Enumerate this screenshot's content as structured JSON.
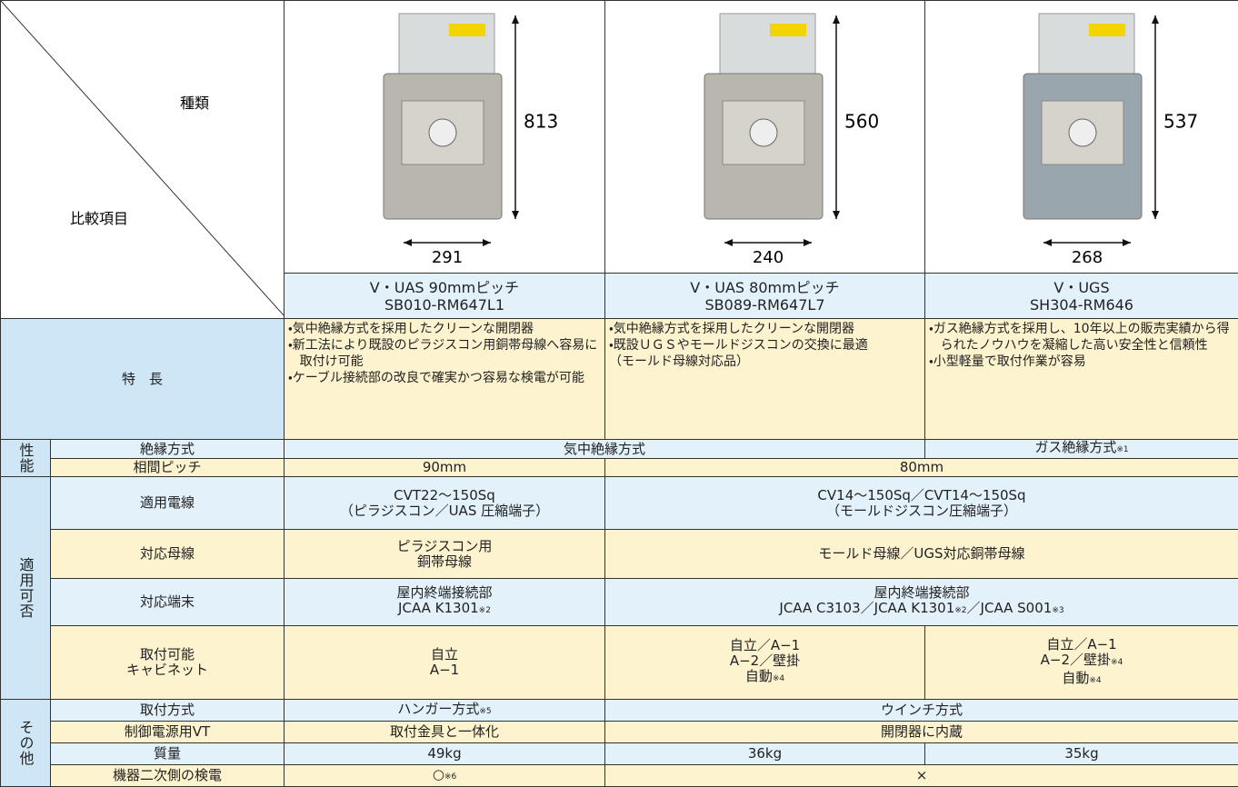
{
  "header": {
    "diagonal_top": "種類",
    "diagonal_bottom": "比較項目"
  },
  "products": [
    {
      "height": 813,
      "width": 291,
      "name": "V・UAS 90mmピッチ",
      "code": "SB010-RM647L1"
    },
    {
      "height": 560,
      "width": 240,
      "name": "V・UAS 80mmピッチ",
      "code": "SB089-RM647L7"
    },
    {
      "height": 537,
      "width": 268,
      "name": "V・UGS",
      "code": "SH304-RM646"
    }
  ],
  "features": {
    "label": "特　長",
    "cells": [
      [
        "・気中絶縁方式を採用したクリーンな開閉器",
        "・新工法により既設のピラジスコン用銅帯母線へ容易に取付け可能",
        "・ケーブル接続部の改良で確実かつ容易な検電が可能"
      ],
      [
        "・気中絶縁方式を採用したクリーンな開閉器",
        "・既設ＵＧＳやモールドジスコンの交換に最適",
        "（モールド母線対応品）"
      ],
      [
        "・ガス絶縁方式を採用し、10年以上の販売実績から得られたノウハウを凝縮した高い安全性と信頼性",
        "・小型軽量で取付作業が容易"
      ]
    ]
  },
  "groups": [
    {
      "label": "性能",
      "rows": [
        {
          "label": [
            "絶縁方式"
          ],
          "cells": [
            [
              [
                "気中絶縁方式"
              ]
            ],
            null,
            [
              [
                "ガス絶縁方式",
                "※1"
              ]
            ]
          ]
        },
        {
          "label": [
            "相間ピッチ"
          ],
          "cells": [
            [
              [
                "90mm"
              ]
            ],
            [
              [
                "80mm"
              ]
            ],
            null
          ]
        }
      ]
    },
    {
      "label": "適用可否",
      "rows": [
        {
          "label": [
            "適用電線"
          ],
          "cells": [
            [
              [
                "CVT22〜150Sq"
              ],
              [
                "（ピラジスコン／UAS 圧縮端子）"
              ]
            ],
            [
              [
                "CV14〜150Sq／CVT14〜150Sq"
              ],
              [
                "（モールドジスコン圧縮端子）"
              ]
            ],
            null
          ]
        },
        {
          "label": [
            "対応母線"
          ],
          "cells": [
            [
              [
                "ピラジスコン用"
              ],
              [
                "銅帯母線"
              ]
            ],
            [
              [
                "モールド母線／UGS対応銅帯母線"
              ]
            ],
            null
          ]
        },
        {
          "label": [
            "対応端末"
          ],
          "cells": [
            [
              [
                "屋内終端接続部"
              ],
              [
                "JCAA K1301",
                "※2"
              ]
            ],
            [
              [
                "屋内終端接続部"
              ],
              [
                "JCAA C3103／JCAA K1301",
                "※2",
                "／JCAA S001",
                "※3"
              ]
            ],
            null
          ]
        },
        {
          "label": [
            "取付可能",
            "キャビネット"
          ],
          "cells": [
            [
              [
                "自立"
              ],
              [
                "A−1"
              ]
            ],
            [
              [
                "自立／A−1"
              ],
              [
                "A−2／壁掛"
              ],
              [
                "自動",
                "※4"
              ]
            ],
            [
              [
                "自立／A−1"
              ],
              [
                "A−2／壁掛",
                "※4"
              ],
              [
                "自動",
                "※4"
              ]
            ]
          ]
        }
      ]
    },
    {
      "label": "その他",
      "rows": [
        {
          "label": [
            "取付方式"
          ],
          "cells": [
            [
              [
                "ハンガー方式",
                "※5"
              ]
            ],
            [
              [
                "ウインチ方式"
              ]
            ],
            null
          ]
        },
        {
          "label": [
            "制御電源用VT"
          ],
          "cells": [
            [
              [
                "取付金具と一体化"
              ]
            ],
            [
              [
                "開閉器に内蔵"
              ]
            ],
            null
          ]
        },
        {
          "label": [
            "質量"
          ],
          "cells": [
            [
              [
                "49kg"
              ]
            ],
            [
              [
                "36kg"
              ]
            ],
            [
              [
                "35kg"
              ]
            ]
          ]
        },
        {
          "label": [
            "機器二次側の検電"
          ],
          "cells": [
            [
              [
                "○",
                "※6"
              ]
            ],
            [
              [
                "×"
              ]
            ],
            null
          ]
        }
      ]
    }
  ]
}
